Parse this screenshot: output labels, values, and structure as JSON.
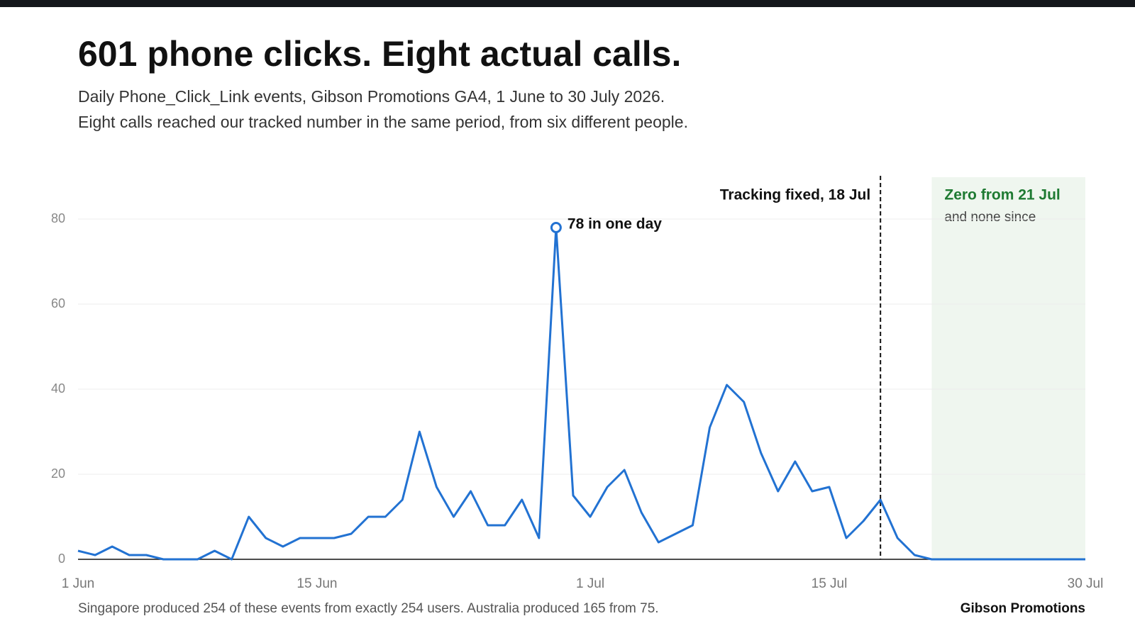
{
  "chart_data": {
    "type": "line",
    "title": "601 phone clicks. Eight actual calls.",
    "subtitle": [
      "Daily Phone_Click_Link events, Gibson Promotions GA4, 1 June to 30 July 2026.",
      "Eight calls reached our tracked number in the same period, from six different people."
    ],
    "x": [
      "1 Jun",
      "2 Jun",
      "3 Jun",
      "4 Jun",
      "5 Jun",
      "6 Jun",
      "7 Jun",
      "8 Jun",
      "9 Jun",
      "10 Jun",
      "11 Jun",
      "12 Jun",
      "13 Jun",
      "14 Jun",
      "15 Jun",
      "16 Jun",
      "17 Jun",
      "18 Jun",
      "19 Jun",
      "20 Jun",
      "21 Jun",
      "22 Jun",
      "23 Jun",
      "24 Jun",
      "25 Jun",
      "26 Jun",
      "27 Jun",
      "28 Jun",
      "29 Jun",
      "30 Jun",
      "1 Jul",
      "2 Jul",
      "3 Jul",
      "4 Jul",
      "5 Jul",
      "6 Jul",
      "7 Jul",
      "8 Jul",
      "9 Jul",
      "10 Jul",
      "11 Jul",
      "12 Jul",
      "13 Jul",
      "14 Jul",
      "15 Jul",
      "16 Jul",
      "17 Jul",
      "18 Jul",
      "19 Jul",
      "20 Jul",
      "21 Jul",
      "22 Jul",
      "23 Jul",
      "24 Jul",
      "25 Jul",
      "26 Jul",
      "27 Jul",
      "28 Jul",
      "29 Jul",
      "30 Jul"
    ],
    "values": [
      2,
      1,
      3,
      1,
      1,
      0,
      0,
      0,
      2,
      0,
      10,
      5,
      3,
      5,
      5,
      5,
      6,
      10,
      10,
      14,
      30,
      17,
      10,
      16,
      8,
      8,
      14,
      5,
      78,
      15,
      10,
      17,
      21,
      11,
      4,
      6,
      8,
      31,
      41,
      37,
      25,
      16,
      23,
      16,
      17,
      5,
      9,
      14,
      5,
      1,
      0,
      0,
      0,
      0,
      0,
      0,
      0,
      0,
      0,
      0
    ],
    "color": "#2272d2",
    "ylim": [
      0,
      80
    ],
    "yticks": [
      0,
      20,
      40,
      60,
      80
    ],
    "xticks": [
      "1 Jun",
      "15 Jun",
      "1 Jul",
      "15 Jul",
      "30 Jul"
    ],
    "grid": true,
    "peak_label": {
      "text": "78 in one day",
      "x": "29 Jun"
    },
    "marker_line": {
      "text": "Tracking fixed, 18 Jul",
      "x": "18 Jul"
    },
    "shaded_span": {
      "title": "Zero from 21 Jul",
      "text": "and none since",
      "from": "21 Jul",
      "to": "30 Jul",
      "color": "#eff6ef",
      "title_color": "#1e7a32"
    },
    "footnote": "Singapore produced 254 of these events from exactly 254 users. Australia produced 165 from 75.",
    "brand": "Gibson Promotions"
  }
}
